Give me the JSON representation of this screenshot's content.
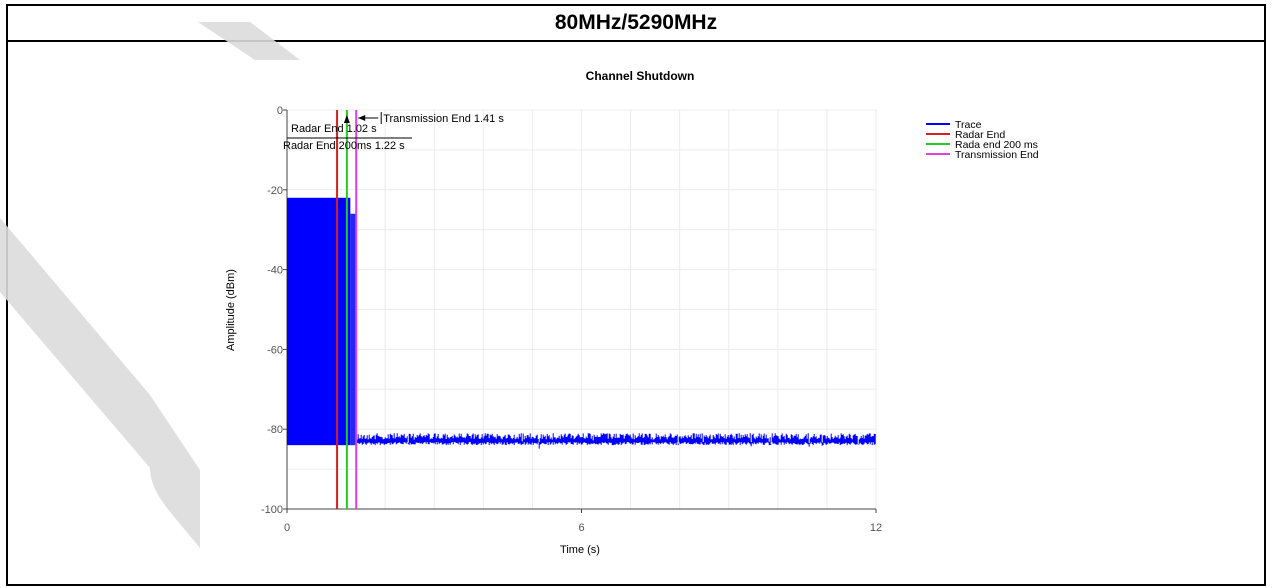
{
  "header": {
    "title": "80MHz/5290MHz"
  },
  "chart_data": {
    "type": "line",
    "title": "Channel Shutdown",
    "xlabel": "Time (s)",
    "ylabel": "Amplitude (dBm)",
    "xlim": [
      0,
      12
    ],
    "ylim": [
      -100,
      0
    ],
    "x_ticks": [
      "0",
      "6",
      "12"
    ],
    "y_ticks": [
      "0",
      "-20",
      "-40",
      "-60",
      "-80",
      "-100"
    ],
    "grid": true,
    "legend_position": "top-right",
    "series": [
      {
        "name": "Trace",
        "color": "#0000ff",
        "description_values": {
          "burst_start": 0,
          "burst_end": 1.41,
          "burst_top": -22,
          "burst_bottom": -84,
          "noise_floor_top": -81,
          "noise_floor_bottom": -84
        }
      },
      {
        "name": "Radar End",
        "color": "#d42020",
        "x": 1.02
      },
      {
        "name": "Rada end 200 ms",
        "color": "#22cc22",
        "x": 1.22
      },
      {
        "name": "Transmission End",
        "color": "#e040e0",
        "x": 1.41
      }
    ],
    "annotations": [
      {
        "text": "Transmission End 1.41 s",
        "x": 1.41
      },
      {
        "text": "Radar End 1.02 s",
        "x": 1.02
      },
      {
        "text": "Radar End 200ms 1.22 s",
        "x": 1.22
      }
    ]
  }
}
